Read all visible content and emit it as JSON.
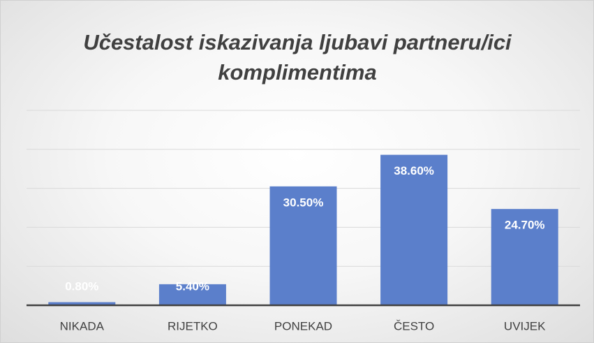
{
  "chart_data": {
    "type": "bar",
    "title": "Učestalost iskazivanja ljubavi partneru/ici komplimentima",
    "categories": [
      "NIKADA",
      "RIJETKO",
      "PONEKAD",
      "ČESTO",
      "UVIJEK"
    ],
    "values": [
      0.8,
      5.4,
      30.5,
      38.6,
      24.7
    ],
    "value_labels": [
      "0.80%",
      "5.40%",
      "30.50%",
      "38.60%",
      "24.70%"
    ],
    "color": "#5b7fcb",
    "ylim": [
      0,
      50
    ],
    "yticks": [
      0,
      10,
      20,
      30,
      40,
      50
    ],
    "grid": true
  }
}
